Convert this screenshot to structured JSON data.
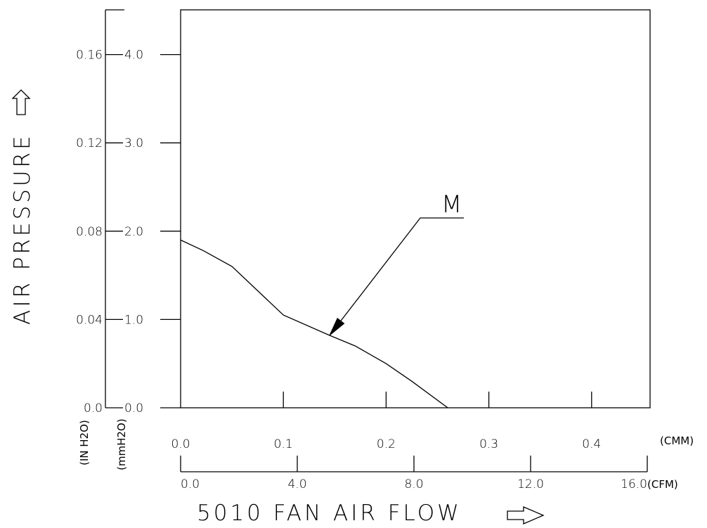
{
  "chart_data": {
    "type": "line",
    "title": "",
    "xlabel": "5010 FAN AIR FLOW",
    "ylabel": "AIR PRESSURE",
    "x_primary": {
      "unit": "(CMM)",
      "range": [
        0,
        0.45
      ],
      "ticks": [
        0,
        0.1,
        0.2,
        0.3,
        0.4
      ],
      "tick_labels": [
        "0.0",
        "0.1",
        "0.2",
        "0.3",
        "0.4"
      ]
    },
    "x_secondary": {
      "unit": "(CFM)",
      "range": [
        0,
        16
      ],
      "ticks": [
        0,
        4,
        8,
        12,
        16
      ],
      "tick_labels": [
        "0.0",
        "4.0",
        "8.0",
        "12.0",
        "16.0"
      ]
    },
    "y_primary": {
      "unit": "(mmH2O)",
      "range": [
        0,
        4.5
      ],
      "ticks": [
        0,
        1,
        2,
        3,
        4
      ],
      "tick_labels": [
        "0.0",
        "1.0",
        "2.0",
        "3.0",
        "4.0"
      ]
    },
    "y_secondary": {
      "unit": "(IN H2O)",
      "ticks": [
        0,
        0.04,
        0.08,
        0.12,
        0.16
      ],
      "tick_labels": [
        "0.0",
        "0.04",
        "0.08",
        "0.12",
        "0.16"
      ]
    },
    "series": [
      {
        "name": "M",
        "x": [
          0,
          0.022,
          0.05,
          0.1,
          0.145,
          0.17,
          0.2,
          0.225,
          0.26
        ],
        "y": [
          1.9,
          1.78,
          1.6,
          1.05,
          0.82,
          0.7,
          0.5,
          0.3,
          0
        ]
      }
    ],
    "annotation": {
      "label": "M",
      "arrow_at_x": 0.145
    },
    "grid": false,
    "legend": "none"
  }
}
